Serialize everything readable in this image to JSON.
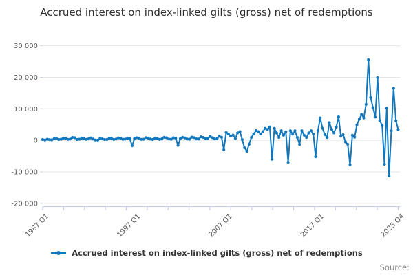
{
  "title": "Accrued interest on index-linked gilts (gross) net of redemptions",
  "legend": {
    "label": "Accrued interest on index-linked gilts (gross) net of redemptions"
  },
  "source_label": "Source:",
  "colors": {
    "line": "#1178be",
    "grid": "#e4e4e4",
    "axis": "#c9cfe6",
    "tick_text": "#5a5a5a",
    "title_text": "#2f2f2f"
  },
  "chart_data": {
    "type": "line",
    "title": "Accrued interest on index-linked gilts (gross) net of redemptions",
    "frequency": "quarterly",
    "x_start": "1987 Q1",
    "x_end": "2025 Q4",
    "x_ticks": [
      {
        "label": "1987 Q1",
        "index": 0
      },
      {
        "label": "1997 Q1",
        "index": 40
      },
      {
        "label": "2007 Q1",
        "index": 80
      },
      {
        "label": "2017 Q1",
        "index": 120
      },
      {
        "label": "2025 Q4",
        "index": 155
      }
    ],
    "y_ticks": [
      30000,
      20000,
      10000,
      0,
      -10000,
      -20000
    ],
    "y_tick_labels": [
      "30 000",
      "20 000",
      "10 000",
      "0",
      "-10 000",
      "-20 000"
    ],
    "ylim": [
      -20000,
      30000
    ],
    "grid": "horizontal-only",
    "legend_position": "bottom-center",
    "series": [
      {
        "name": "Accrued interest on index-linked gilts (gross) net of redemptions",
        "values": [
          250,
          100,
          350,
          200,
          150,
          500,
          600,
          250,
          350,
          700,
          650,
          300,
          400,
          900,
          800,
          250,
          350,
          650,
          500,
          300,
          450,
          750,
          400,
          100,
          50,
          550,
          450,
          250,
          250,
          600,
          550,
          300,
          400,
          750,
          600,
          350,
          400,
          650,
          500,
          -1700,
          500,
          800,
          600,
          300,
          350,
          850,
          700,
          400,
          250,
          700,
          550,
          300,
          450,
          950,
          800,
          400,
          350,
          800,
          600,
          -1600,
          500,
          950,
          750,
          400,
          350,
          1000,
          850,
          450,
          400,
          1100,
          900,
          500,
          550,
          1200,
          850,
          450,
          500,
          1300,
          950,
          -3000,
          2500,
          2000,
          1300,
          1650,
          550,
          2350,
          2750,
          200,
          -2350,
          -3450,
          -1250,
          900,
          2000,
          3100,
          2750,
          2000,
          2750,
          3800,
          3450,
          4200,
          -6000,
          3800,
          2300,
          900,
          3050,
          1600,
          2700,
          -7000,
          3050,
          1950,
          3050,
          900,
          -1300,
          3050,
          1600,
          900,
          2330,
          3050,
          2000,
          -5200,
          3100,
          7100,
          3800,
          1800,
          900,
          5600,
          3450,
          2350,
          4200,
          7450,
          1270,
          1800,
          -500,
          -1270,
          -7800,
          1600,
          1000,
          4900,
          6700,
          8200,
          7100,
          11400,
          25600,
          13600,
          10350,
          7400,
          19900,
          6300,
          4700,
          -7600,
          10200,
          -11300,
          3050,
          16500,
          6200,
          3400
        ]
      }
    ]
  }
}
